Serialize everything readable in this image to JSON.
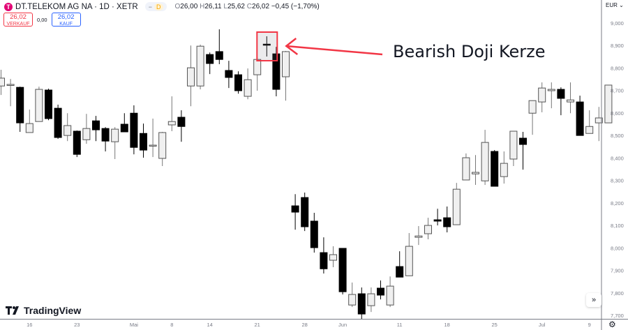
{
  "header": {
    "symbol": "DT.TELEKOM AG NA · 1D · XETR",
    "logo_letter": "T",
    "status_badge": "D",
    "ohlc": {
      "o_label": "O",
      "o": "26,00",
      "h_label": "H",
      "h": "26,11",
      "l_label": "L",
      "l": "25,62",
      "c_label": "C",
      "c": "26,02",
      "change": "−0,45 (−1,70%)"
    }
  },
  "trade": {
    "sell_price": "26,02",
    "sell_label": "VERKAUF",
    "spread": "0,00",
    "buy_price": "26,02",
    "buy_label": "KAUF"
  },
  "axis": {
    "currency": "EUR ⌄",
    "y_ticks": [
      "9,000",
      "8,900",
      "8,800",
      "8,700",
      "8,600",
      "8,500",
      "8,400",
      "8,300",
      "8,200",
      "8,100",
      "8,000",
      "7,900",
      "7,800",
      "7,700"
    ],
    "x_ticks": [
      {
        "label": "16",
        "index": 3
      },
      {
        "label": "23",
        "index": 8
      },
      {
        "label": "Mai",
        "index": 14
      },
      {
        "label": "8",
        "index": 18
      },
      {
        "label": "14",
        "index": 22
      },
      {
        "label": "21",
        "index": 27
      },
      {
        "label": "28",
        "index": 32
      },
      {
        "label": "Jun",
        "index": 36
      },
      {
        "label": "11",
        "index": 42
      },
      {
        "label": "18",
        "index": 47
      },
      {
        "label": "25",
        "index": 52
      },
      {
        "label": "Jul",
        "index": 57
      },
      {
        "label": "9",
        "index": 62
      }
    ]
  },
  "annotation": {
    "text": "Bearish Doji Kerze",
    "candle_index": 28,
    "color": "#f23645"
  },
  "branding": {
    "name": "TradingView"
  },
  "icons": {
    "scroll": "double-chevron-right-icon",
    "settings": "gear-icon"
  },
  "colors": {
    "up": "#f0f0f0",
    "down": "#000000",
    "outline": "#555555",
    "axis": "#787b86"
  },
  "chart_data": {
    "type": "candlestick",
    "ylim": [
      7.7,
      9.0
    ],
    "ohlc": [
      [
        8.72,
        8.792,
        8.68,
        8.755
      ],
      [
        8.724,
        8.751,
        8.63,
        8.727
      ],
      [
        8.714,
        8.717,
        8.516,
        8.556
      ],
      [
        8.513,
        8.615,
        8.513,
        8.553
      ],
      [
        8.562,
        8.717,
        8.562,
        8.705
      ],
      [
        8.702,
        8.708,
        8.568,
        8.575
      ],
      [
        8.621,
        8.637,
        8.485,
        8.491
      ],
      [
        8.5,
        8.599,
        8.475,
        8.544
      ],
      [
        8.519,
        8.522,
        8.404,
        8.416
      ],
      [
        8.481,
        8.596,
        8.463,
        8.531
      ],
      [
        8.565,
        8.587,
        8.475,
        8.525
      ],
      [
        8.531,
        8.537,
        8.429,
        8.475
      ],
      [
        8.472,
        8.537,
        8.395,
        8.528
      ],
      [
        8.55,
        8.599,
        8.516,
        8.516
      ],
      [
        8.599,
        8.634,
        8.416,
        8.447
      ],
      [
        8.509,
        8.553,
        8.401,
        8.435
      ],
      [
        8.457,
        8.575,
        8.404,
        8.457
      ],
      [
        8.398,
        8.516,
        8.364,
        8.513
      ],
      [
        8.547,
        8.674,
        8.519,
        8.562
      ],
      [
        8.581,
        8.612,
        8.472,
        8.54
      ],
      [
        8.72,
        8.9,
        8.63,
        8.801
      ],
      [
        8.72,
        8.904,
        8.705,
        8.897
      ],
      [
        8.86,
        8.869,
        8.773,
        8.82
      ],
      [
        8.873,
        8.972,
        8.817,
        8.838
      ],
      [
        8.789,
        8.832,
        8.711,
        8.758
      ],
      [
        8.77,
        8.785,
        8.686,
        8.699
      ],
      [
        8.674,
        8.798,
        8.661,
        8.748
      ],
      [
        8.77,
        8.848,
        8.699,
        8.838
      ],
      [
        8.906,
        8.941,
        8.851,
        8.902
      ],
      [
        8.863,
        8.894,
        8.674,
        8.705
      ],
      [
        8.761,
        8.876,
        8.655,
        8.873
      ],
      [
        8.187,
        8.239,
        8.081,
        8.159
      ],
      [
        8.224,
        8.246,
        8.075,
        8.094
      ],
      [
        8.119,
        8.156,
        7.979,
        8.001
      ],
      [
        7.979,
        8.047,
        7.886,
        7.907
      ],
      [
        7.945,
        8.007,
        7.914,
        7.97
      ],
      [
        7.998,
        7.998,
        7.793,
        7.805
      ],
      [
        7.746,
        7.846,
        7.737,
        7.793
      ],
      [
        7.796,
        7.824,
        7.684,
        7.706
      ],
      [
        7.743,
        7.824,
        7.715,
        7.796
      ],
      [
        7.821,
        7.855,
        7.771,
        7.79
      ],
      [
        7.746,
        7.873,
        7.737,
        7.83
      ],
      [
        7.917,
        7.985,
        7.87,
        7.87
      ],
      [
        7.876,
        8.066,
        7.876,
        8.007
      ],
      [
        8.047,
        8.097,
        8.013,
        8.053
      ],
      [
        8.063,
        8.134,
        8.038,
        8.1
      ],
      [
        8.125,
        8.174,
        8.1,
        8.119
      ],
      [
        8.134,
        8.184,
        8.069,
        8.094
      ],
      [
        8.103,
        8.289,
        8.103,
        8.261
      ],
      [
        8.302,
        8.42,
        8.302,
        8.401
      ],
      [
        8.329,
        8.413,
        8.28,
        8.336
      ],
      [
        8.298,
        8.525,
        8.28,
        8.469
      ],
      [
        8.429,
        8.435,
        8.274,
        8.274
      ],
      [
        8.317,
        8.429,
        8.286,
        8.376
      ],
      [
        8.395,
        8.519,
        8.364,
        8.519
      ],
      [
        8.488,
        8.516,
        8.348,
        8.46
      ],
      [
        8.599,
        8.655,
        8.503,
        8.655
      ],
      [
        8.649,
        8.736,
        8.603,
        8.711
      ],
      [
        8.699,
        8.736,
        8.621,
        8.705
      ],
      [
        8.705,
        8.714,
        8.59,
        8.665
      ],
      [
        8.649,
        8.736,
        8.599,
        8.658
      ],
      [
        8.649,
        8.677,
        8.5,
        8.5
      ],
      [
        8.509,
        8.612,
        8.509,
        8.54
      ],
      [
        8.556,
        8.627,
        8.475,
        8.578
      ],
      [
        8.556,
        8.724,
        8.556,
        8.724
      ]
    ]
  }
}
